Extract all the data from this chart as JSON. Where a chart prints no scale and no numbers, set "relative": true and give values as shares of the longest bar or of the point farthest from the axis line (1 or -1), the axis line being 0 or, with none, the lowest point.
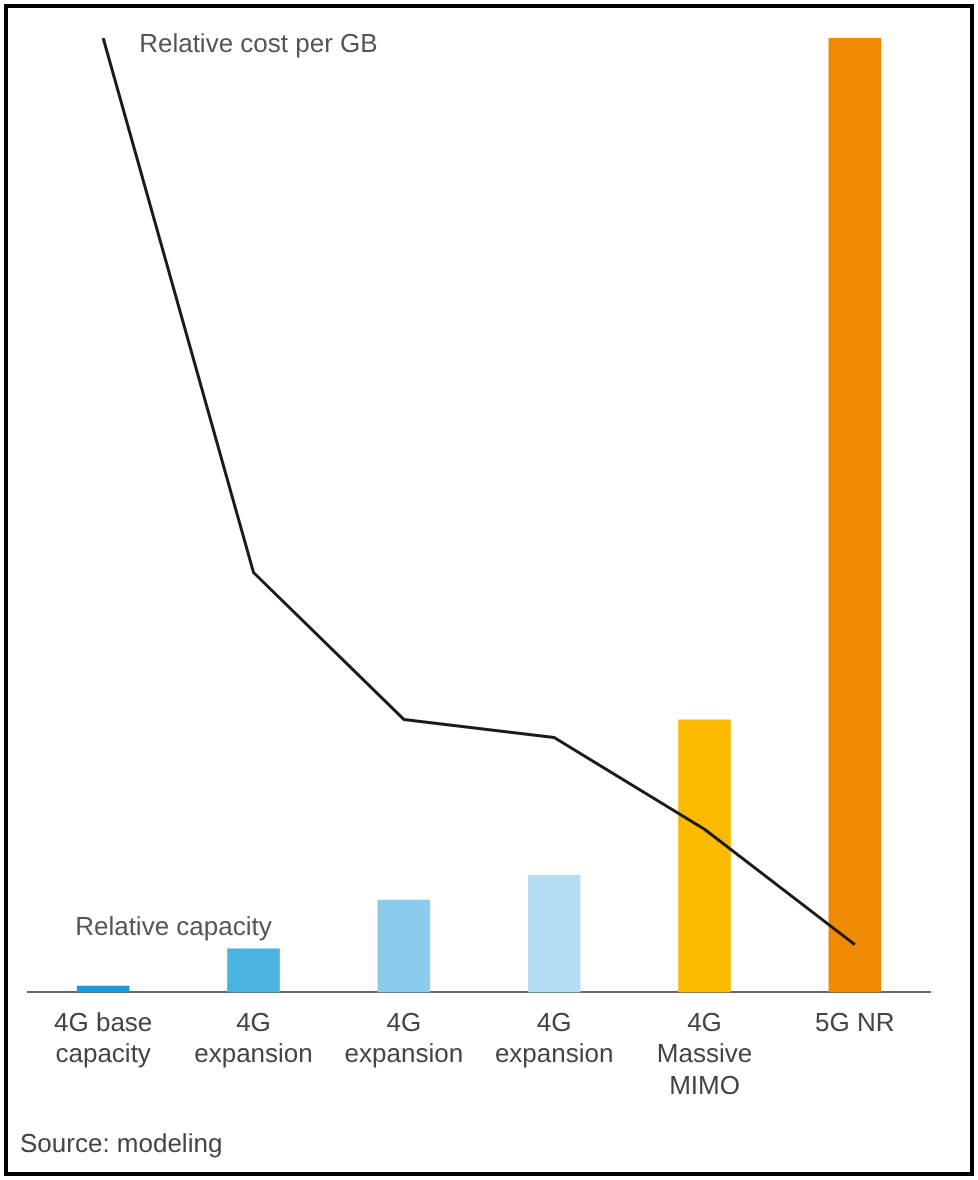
{
  "chart_data": {
    "type": "bar",
    "relative": true,
    "categories": [
      "4G base capacity",
      "4G expansion",
      "4G expansion",
      "4G expansion",
      "4G Massive MIMO",
      "5G NR"
    ],
    "series": [
      {
        "type": "line",
        "name": "Relative cost per GB",
        "color": "#1a1a1a",
        "values": [
          1,
          0.44,
          0.286,
          0.267,
          0.171,
          0.05
        ]
      },
      {
        "name": "Relative capacity",
        "colors": [
          "#1a9bd7",
          "#4ab3e0",
          "#8ccbeb",
          "#b5ddf2",
          "#fbb900",
          "#f08a00"
        ],
        "values": [
          0.007,
          0.046,
          0.097,
          0.123,
          0.286,
          1
        ]
      }
    ],
    "marker": "none",
    "grid": false,
    "legend": false,
    "annotations": [
      "Source: modeling"
    ]
  }
}
